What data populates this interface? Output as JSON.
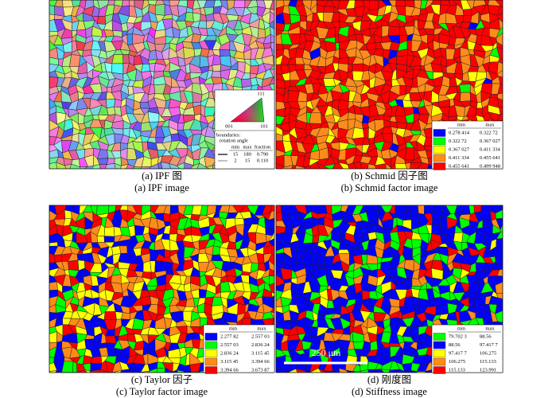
{
  "panels": [
    {
      "caption_cn": "(a) IPF 图",
      "caption_en": "(a) IPF image",
      "ipf_key": {
        "top": "111",
        "left": "001",
        "right": "101"
      },
      "boundaries": {
        "title": "boundaries:",
        "subtitle": "rotation angle",
        "headers": [
          "min",
          "max",
          "fraction"
        ],
        "rows": [
          [
            "15",
            "180",
            "0.790"
          ],
          [
            "2",
            "15",
            "0.110"
          ]
        ]
      }
    },
    {
      "caption_cn": "(b) Schmid 因子图",
      "caption_en": "(b) Schmid factor image",
      "legend": {
        "headers": [
          "min",
          "max"
        ],
        "rows": [
          [
            "0.278 414",
            "0.322 72"
          ],
          [
            "0.322 72",
            "0.367 027"
          ],
          [
            "0.367 027",
            "0.411 334"
          ],
          [
            "0.411 334",
            "0.455 641"
          ],
          [
            "0.455 641",
            "0.499 948"
          ]
        ]
      }
    },
    {
      "caption_cn": "(c) Taylor 因子",
      "caption_en": "(c) Taylor factor image",
      "legend": {
        "headers": [
          "min",
          "max"
        ],
        "rows": [
          [
            "2.277 82",
            "2.557 03"
          ],
          [
            "2.557 03",
            "2.836 24"
          ],
          [
            "2.836 24",
            "3.115 45"
          ],
          [
            "3.115 45",
            "3.394 66"
          ],
          [
            "3.394 66",
            "3.673 87"
          ]
        ]
      }
    },
    {
      "caption_cn": "(d) 刚度图",
      "caption_en": "(d) Stiffness image",
      "scale_bar": "250 μm",
      "legend": {
        "headers": [
          "min",
          "max"
        ],
        "rows": [
          [
            "79.702 3",
            "88.56"
          ],
          [
            "88.56",
            "97.417 7"
          ],
          [
            "97.417 7",
            "106.275"
          ],
          [
            "106.275",
            "115.133"
          ],
          [
            "115.133",
            "123.991"
          ]
        ]
      }
    }
  ]
}
